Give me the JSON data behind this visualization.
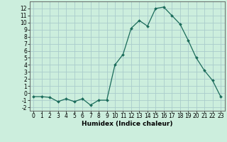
{
  "x": [
    0,
    1,
    2,
    3,
    4,
    5,
    6,
    7,
    8,
    9,
    10,
    11,
    12,
    13,
    14,
    15,
    16,
    17,
    18,
    19,
    20,
    21,
    22,
    23
  ],
  "y": [
    -0.5,
    -0.5,
    -0.6,
    -1.2,
    -0.8,
    -1.2,
    -0.8,
    -1.7,
    -1.0,
    -1.0,
    4.0,
    5.5,
    9.2,
    10.3,
    9.5,
    12.0,
    12.2,
    11.0,
    9.8,
    7.5,
    5.0,
    3.2,
    1.8,
    -0.5
  ],
  "xlabel": "Humidex (Indice chaleur)",
  "bg_color": "#cceedd",
  "line_color": "#1a6b5a",
  "grid_color": "#aacccc",
  "xlim": [
    -0.5,
    23.5
  ],
  "ylim": [
    -2.5,
    13.0
  ],
  "yticks": [
    -2,
    -1,
    0,
    1,
    2,
    3,
    4,
    5,
    6,
    7,
    8,
    9,
    10,
    11,
    12
  ],
  "xticks": [
    0,
    1,
    2,
    3,
    4,
    5,
    6,
    7,
    8,
    9,
    10,
    11,
    12,
    13,
    14,
    15,
    16,
    17,
    18,
    19,
    20,
    21,
    22,
    23
  ],
  "xlabel_fontsize": 6.5,
  "tick_fontsize": 5.5
}
